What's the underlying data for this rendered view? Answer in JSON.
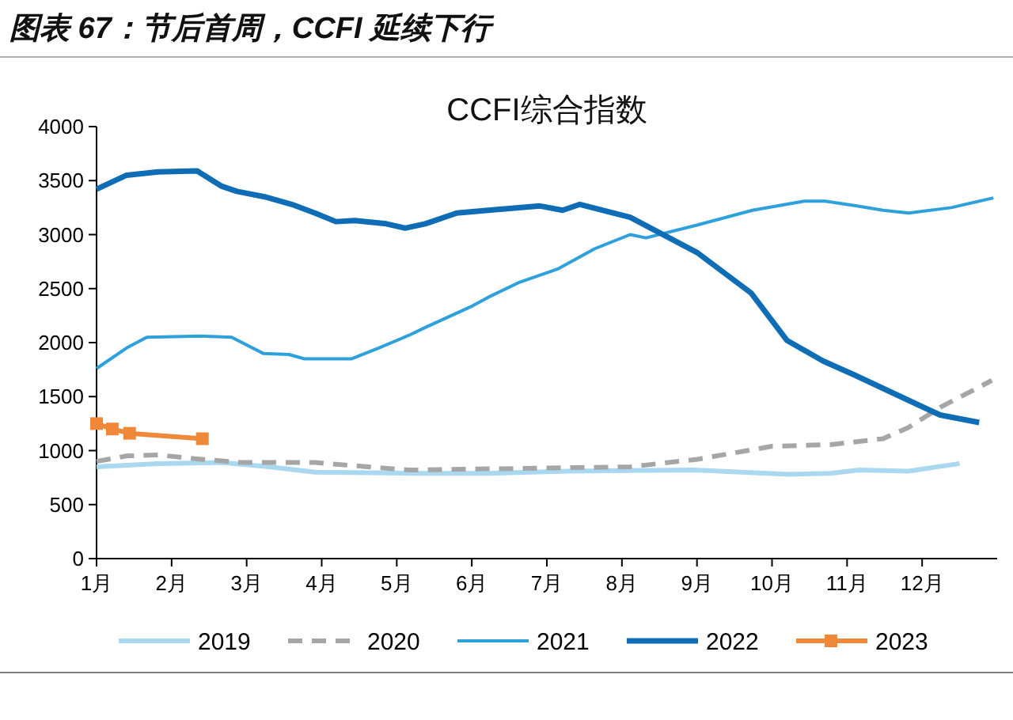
{
  "chart_data": {
    "type": "line",
    "title": "CCFI综合指数",
    "subtitle": "图表 67：节后首周，CCFI 延续下行",
    "xlim": [
      1,
      13
    ],
    "xticks": [
      {
        "value": 1,
        "label": "1月"
      },
      {
        "value": 2,
        "label": "2月"
      },
      {
        "value": 3,
        "label": "3月"
      },
      {
        "value": 4,
        "label": "4月"
      },
      {
        "value": 5,
        "label": "5月"
      },
      {
        "value": 6,
        "label": "6月"
      },
      {
        "value": 7,
        "label": "7月"
      },
      {
        "value": 8,
        "label": "8月"
      },
      {
        "value": 9,
        "label": "9月"
      },
      {
        "value": 10,
        "label": "10月"
      },
      {
        "value": 11,
        "label": "11月"
      },
      {
        "value": 12,
        "label": "12月"
      }
    ],
    "ylim": [
      0,
      4000
    ],
    "yticks": [
      0,
      500,
      1000,
      1500,
      2000,
      2500,
      3000,
      3500,
      4000
    ],
    "grid": false,
    "legend": "bottom",
    "series": [
      {
        "name": "2019",
        "color": "#a9d8f0",
        "line_style": "solid",
        "x": [
          1,
          1.82,
          2.66,
          3.3,
          3.91,
          5.17,
          6.22,
          7.27,
          8.96,
          10.22,
          10.78,
          11.16,
          11.82,
          12.5
        ],
        "values": [
          850,
          880,
          890,
          850,
          800,
          790,
          790,
          810,
          820,
          780,
          790,
          820,
          810,
          880
        ]
      },
      {
        "name": "2020",
        "color": "#a6a6a6",
        "line_style": "dashed",
        "x": [
          1,
          1.4,
          1.82,
          2.39,
          2.93,
          3.91,
          4.61,
          5.17,
          8.11,
          9.01,
          10.0,
          10.78,
          11.48,
          11.82,
          12.24,
          12.93
        ],
        "values": [
          900,
          950,
          960,
          920,
          890,
          890,
          850,
          820,
          850,
          920,
          1040,
          1055,
          1110,
          1215,
          1400,
          1650
        ],
        "marker": "none"
      },
      {
        "name": "2021",
        "color": "#2ea0dc",
        "line_style": "solid",
        "x": [
          1,
          1.4,
          1.67,
          2.38,
          2.8,
          3.22,
          3.56,
          3.77,
          4.4,
          4.76,
          5.17,
          5.38,
          6.01,
          6.22,
          6.64,
          7.14,
          7.64,
          8.11,
          8.32,
          9.01,
          9.74,
          10.43,
          10.71,
          11.13,
          11.48,
          11.82,
          12.39,
          12.95
        ],
        "values": [
          1760,
          1950,
          2050,
          2060,
          2050,
          1900,
          1890,
          1850,
          1850,
          1950,
          2070,
          2140,
          2340,
          2420,
          2560,
          2680,
          2870,
          3000,
          2970,
          3090,
          3225,
          3310,
          3310,
          3265,
          3225,
          3200,
          3250,
          3340
        ]
      },
      {
        "name": "2022",
        "color": "#0f6db5",
        "line_style": "solid",
        "x": [
          1,
          1.4,
          1.82,
          2.34,
          2.66,
          2.87,
          3.24,
          3.6,
          3.91,
          4.19,
          4.44,
          4.86,
          5.11,
          5.38,
          5.8,
          6.22,
          6.91,
          7.21,
          7.44,
          8.11,
          9.01,
          9.72,
          10.2,
          10.68,
          11.1,
          11.82,
          12.24,
          12.76
        ],
        "values": [
          3420,
          3550,
          3580,
          3590,
          3450,
          3400,
          3350,
          3280,
          3200,
          3120,
          3130,
          3100,
          3060,
          3100,
          3200,
          3225,
          3265,
          3225,
          3280,
          3160,
          2830,
          2460,
          2020,
          1830,
          1700,
          1465,
          1330,
          1260
        ]
      },
      {
        "name": "2023",
        "color": "#f0883a",
        "line_style": "solid",
        "marker": "square",
        "x": [
          1,
          1.21,
          1.44,
          2.41
        ],
        "values": [
          1250,
          1200,
          1160,
          1110
        ]
      }
    ]
  }
}
